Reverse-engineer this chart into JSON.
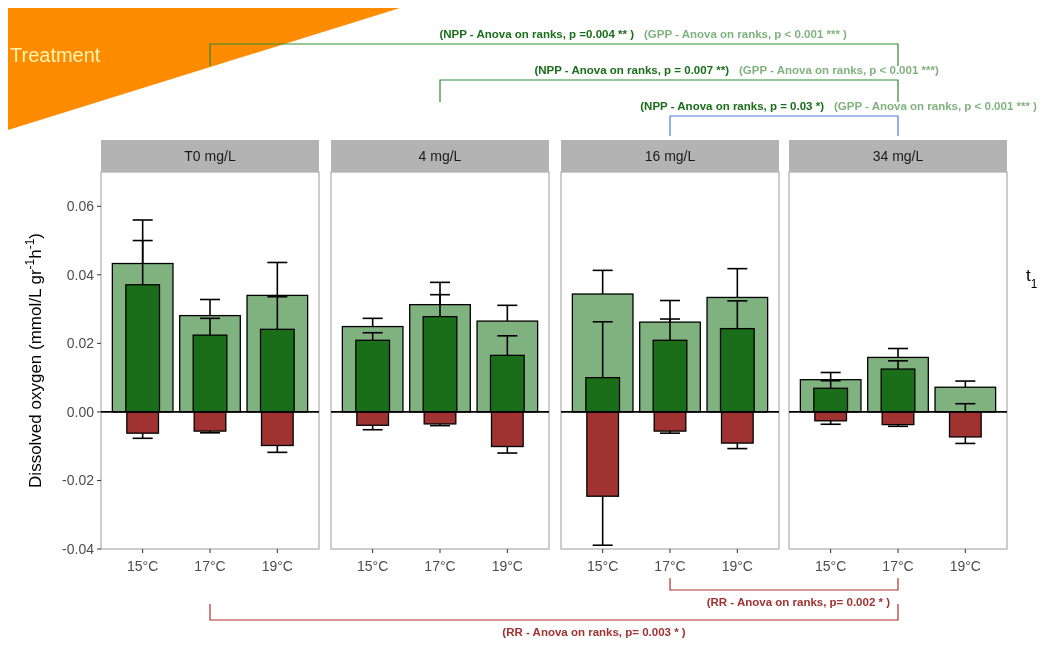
{
  "chart_data": [
    {
      "type": "bar",
      "title": "T0 mg/L",
      "categories": [
        "15°C",
        "17°C",
        "19°C"
      ],
      "ylabel": "Dissolved oxygen   (mmol/L gr$^{-1}$h$^{-1}$)",
      "ylim": [
        -0.04,
        0.07
      ],
      "yticks": [
        {
          "value": -0.04,
          "label": "-0.04"
        },
        {
          "value": -0.02,
          "label": "-0.02"
        },
        {
          "value": 0,
          "label": "0.00"
        },
        {
          "value": 0.02,
          "label": "0.02"
        },
        {
          "value": 0.04,
          "label": "0.04"
        },
        {
          "value": 0.06,
          "label": "0.06"
        }
      ],
      "grid": false,
      "ref_lines": [
        {
          "axis": "y",
          "value": 0,
          "color": "#000000"
        }
      ],
      "series": [
        {
          "color": "#80b27f",
          "values": [
            0.0433,
            0.0281,
            0.034
          ],
          "errors": [
            [
              0.0433,
              0.056
            ],
            [
              0.0281,
              0.0328
            ],
            [
              0.034,
              0.0436
            ]
          ]
        },
        {
          "color": "#1a6e1a",
          "values": [
            0.0371,
            0.0224,
            0.0241
          ],
          "errors": [
            [
              0.0371,
              0.05
            ],
            [
              0.0224,
              0.0273
            ],
            [
              0.0241,
              0.0336
            ]
          ]
        },
        {
          "color": "#a03232",
          "values": [
            -0.0062,
            -0.0056,
            -0.0098
          ],
          "errors": [
            [
              -0.0077,
              -0.0062
            ],
            [
              -0.0061,
              -0.0056
            ],
            [
              -0.0118,
              -0.0098
            ]
          ]
        }
      ],
      "annotations": [
        "(NPP - Anova on ranks, p =0.004 ** )",
        "(GPP - Anova on ranks, p < 0.001 *** )",
        "(NPP - Anova on ranks, p = 0.007 **)",
        "(GPP - Anova on ranks, p < 0.001 ***)",
        "(NPP - Anova on ranks, p = 0.03 *)",
        "(GPP - Anova on ranks, p < 0.001 *** )",
        "(RR - Anova on ranks, p= 0.002 * )",
        "(RR - Anova on ranks, p= 0.003 * )",
        "Treatment",
        "t$_{1}$"
      ]
    },
    {
      "type": "bar",
      "title": "4 mg/L",
      "categories": [
        "15°C",
        "17°C",
        "19°C"
      ],
      "ylim": [
        -0.04,
        0.07
      ],
      "tick_labels": "x",
      "grid": false,
      "ref_lines": [
        {
          "axis": "y",
          "value": 0,
          "color": "#000000"
        }
      ],
      "series": [
        {
          "color": "#80b27f",
          "values": [
            0.0249,
            0.0313,
            0.0265
          ],
          "errors": [
            [
              0.0249,
              0.0273
            ],
            [
              0.0313,
              0.0378
            ],
            [
              0.0265,
              0.0311
            ]
          ]
        },
        {
          "color": "#1a6e1a",
          "values": [
            0.0209,
            0.0278,
            0.0165
          ],
          "errors": [
            [
              0.0209,
              0.0231
            ],
            [
              0.0278,
              0.0342
            ],
            [
              0.0165,
              0.0222
            ]
          ]
        },
        {
          "color": "#a03232",
          "values": [
            -0.0039,
            -0.0035,
            -0.0101
          ],
          "errors": [
            [
              -0.0052,
              -0.0039
            ],
            [
              -0.004,
              -0.0035
            ],
            [
              -0.012,
              -0.0101
            ]
          ]
        }
      ]
    },
    {
      "type": "bar",
      "title": "16 mg/L",
      "categories": [
        "15°C",
        "17°C",
        "19°C"
      ],
      "ylim": [
        -0.04,
        0.07
      ],
      "tick_labels": "x",
      "grid": false,
      "ref_lines": [
        {
          "axis": "y",
          "value": 0,
          "color": "#000000"
        }
      ],
      "series": [
        {
          "color": "#80b27f",
          "values": [
            0.0344,
            0.0262,
            0.0334
          ],
          "errors": [
            [
              0.0344,
              0.0413
            ],
            [
              0.0262,
              0.0325
            ],
            [
              0.0334,
              0.0418
            ]
          ]
        },
        {
          "color": "#1a6e1a",
          "values": [
            0.01,
            0.0209,
            0.0243
          ],
          "errors": [
            [
              0.01,
              0.0263
            ],
            [
              0.0209,
              0.0271
            ],
            [
              0.0243,
              0.0324
            ]
          ]
        },
        {
          "color": "#a03232",
          "values": [
            -0.0246,
            -0.0056,
            -0.0091
          ],
          "errors": [
            [
              -0.0389,
              -0.0246
            ],
            [
              -0.0062,
              -0.0056
            ],
            [
              -0.0107,
              -0.0091
            ]
          ]
        }
      ]
    },
    {
      "type": "bar",
      "title": "34 mg/L",
      "categories": [
        "15°C",
        "17°C",
        "19°C"
      ],
      "ylim": [
        -0.04,
        0.07
      ],
      "tick_labels": "x",
      "grid": false,
      "ref_lines": [
        {
          "axis": "y",
          "value": 0,
          "color": "#000000"
        }
      ],
      "series": [
        {
          "color": "#80b27f",
          "values": [
            0.0094,
            0.0159,
            0.0072
          ],
          "errors": [
            [
              0.0094,
              0.0115
            ],
            [
              0.0159,
              0.0185
            ],
            [
              0.0072,
              0.009
            ]
          ]
        },
        {
          "color": "#1a6e1a",
          "values": [
            0.0069,
            0.0125,
            0
          ],
          "errors": [
            [
              0.0069,
              0.0091
            ],
            [
              0.0125,
              0.0149
            ],
            [
              0,
              0.0024
            ]
          ]
        },
        {
          "color": "#a03232",
          "values": [
            -0.0026,
            -0.0037,
            -0.0073
          ],
          "errors": [
            [
              -0.0036,
              -0.0026
            ],
            [
              -0.0042,
              -0.0037
            ],
            [
              -0.0092,
              -0.0073
            ]
          ]
        }
      ]
    }
  ]
}
